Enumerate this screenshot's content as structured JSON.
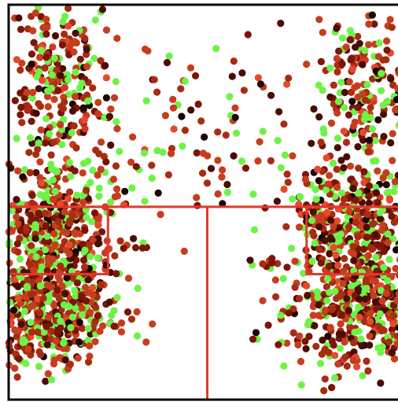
{
  "chart_data": {
    "type": "scatter",
    "title": "",
    "xlabel": "",
    "ylabel": "",
    "xlim": [
      -250,
      250
    ],
    "ylim": [
      -47,
      422
    ],
    "grid": false,
    "legend": "none",
    "colors": {
      "frame": "#000000",
      "court_lines": "#e5372a",
      "points": [
        "#6ef247",
        "#c63d1e",
        "#a82c12",
        "#7a1508",
        "#4a0c05",
        "#1a0504",
        "#e54a2a"
      ]
    },
    "court_lines": [
      {
        "shape": "line",
        "points": [
          [
            -250,
            182
          ],
          [
            250,
            182
          ]
        ]
      },
      {
        "shape": "line",
        "points": [
          [
            0,
            182
          ],
          [
            0,
            -47
          ]
        ]
      },
      {
        "shape": "rect",
        "x": [
          -250,
          -125
        ],
        "y": [
          102,
          182
        ]
      },
      {
        "shape": "rect",
        "x": [
          125,
          250
        ],
        "y": [
          102,
          182
        ]
      }
    ],
    "clusters": [
      {
        "center": [
          -188,
          330
        ],
        "spread": [
          30,
          52
        ],
        "count": 260
      },
      {
        "center": [
          -195,
          150
        ],
        "spread": [
          40,
          40
        ],
        "count": 480
      },
      {
        "center": [
          -200,
          50
        ],
        "spread": [
          45,
          35
        ],
        "count": 420
      },
      {
        "center": [
          200,
          320
        ],
        "spread": [
          30,
          45
        ],
        "count": 200
      },
      {
        "center": [
          195,
          160
        ],
        "spread": [
          45,
          40
        ],
        "count": 380
      },
      {
        "center": [
          190,
          60
        ],
        "spread": [
          48,
          38
        ],
        "count": 480
      },
      {
        "center": [
          0,
          260
        ],
        "spread": [
          110,
          65
        ],
        "count": 140
      }
    ]
  }
}
